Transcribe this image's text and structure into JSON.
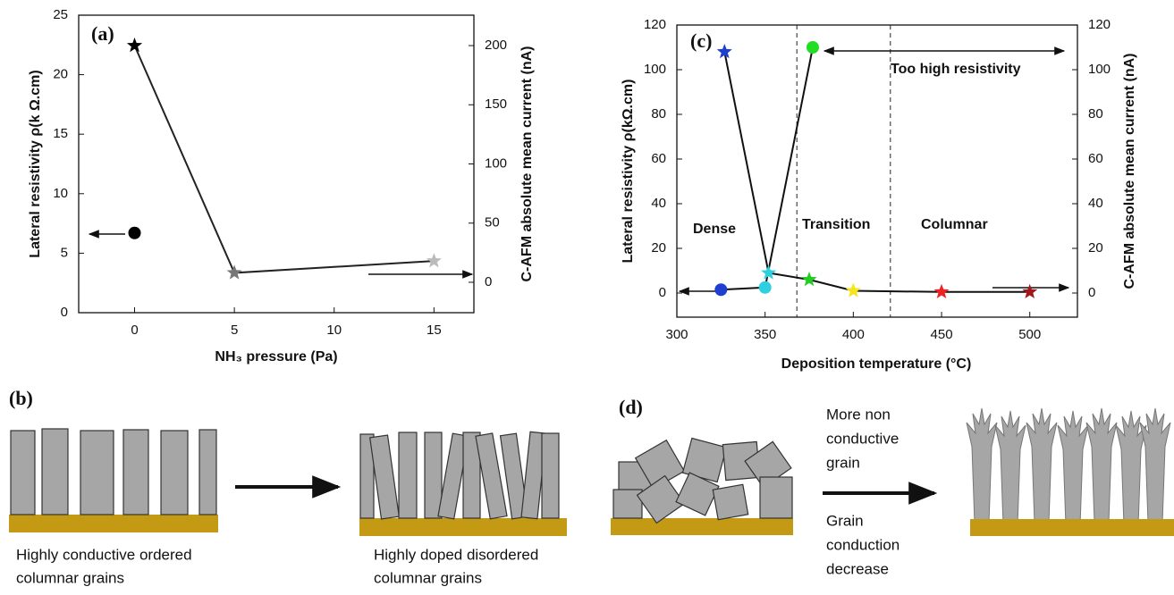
{
  "chart_data": [
    {
      "type": "scatter",
      "panel": "(a)",
      "x_label": "NH₃ pressure (Pa)",
      "y_label": "Lateral resistivity ρ(k Ω.cm)",
      "y2_label": "C-AFM absolute mean current (nA)",
      "xlim": [
        -2.8,
        17
      ],
      "xticks": [
        0,
        5,
        10,
        15
      ],
      "ylim": [
        0,
        25
      ],
      "yticks": [
        0,
        5,
        10,
        15,
        20,
        25
      ],
      "y2lim": [
        -25.7,
        225.7
      ],
      "y2ticks": [
        0,
        50,
        100,
        150,
        200
      ],
      "series": [
        {
          "x": [
            0
          ],
          "values": [
            6.7
          ],
          "marker": "circle",
          "colors": [
            "#000000"
          ]
        },
        {
          "x": [
            0,
            5,
            15
          ],
          "values": [
            200,
            8,
            18
          ],
          "axis": "y2",
          "marker": "star",
          "line_color": "#222222",
          "colors": [
            "#000000",
            "#777777",
            "#bbbbbb"
          ]
        }
      ]
    },
    {
      "type": "scatter",
      "panel": "(c)",
      "x_label": "Deposition temperature (°C)",
      "y_label": "Lateral resistivity ρ(kΩ.cm)",
      "y2_label": "C-AFM absolute mean current (nA)",
      "xlim": [
        300,
        527
      ],
      "xticks": [
        300,
        350,
        400,
        450,
        500
      ],
      "ylim": [
        -10.8,
        120
      ],
      "yticks": [
        0,
        20,
        40,
        60,
        80,
        100,
        120
      ],
      "y2lim": [
        -10.8,
        120
      ],
      "y2ticks": [
        0,
        20,
        40,
        60,
        80,
        100,
        120
      ],
      "vlines": [
        368,
        421
      ],
      "annotations": [
        "Dense",
        "Transition",
        "Columnar",
        "Too high resistivity"
      ],
      "series": [
        {
          "x": [
            325,
            350,
            377
          ],
          "values": [
            1.5,
            2.5,
            110
          ],
          "marker": "circle",
          "line_color": "#111111",
          "colors": [
            "#1f3fd0",
            "#2ed0e0",
            "#22dd22"
          ]
        },
        {
          "x": [
            327,
            352,
            375,
            400,
            450,
            500
          ],
          "values": [
            108,
            9,
            6,
            1,
            0.5,
            0.5
          ],
          "axis": "y2",
          "marker": "star",
          "line_color": "#111111",
          "colors": [
            "#1f3fd0",
            "#2ed0e0",
            "#22cc22",
            "#f5e51a",
            "#ee2222",
            "#a01818"
          ]
        }
      ]
    }
  ],
  "diagrams": {
    "b": {
      "label": "(b)",
      "left_caption": [
        "Highly conductive ordered",
        "columnar grains"
      ],
      "right_caption": [
        "Highly doped disordered",
        "columnar grains"
      ]
    },
    "d": {
      "label": "(d)",
      "top_text": [
        "More non",
        "conductive",
        "grain"
      ],
      "bottom_text": [
        "Grain",
        "conduction",
        "decrease"
      ]
    }
  }
}
